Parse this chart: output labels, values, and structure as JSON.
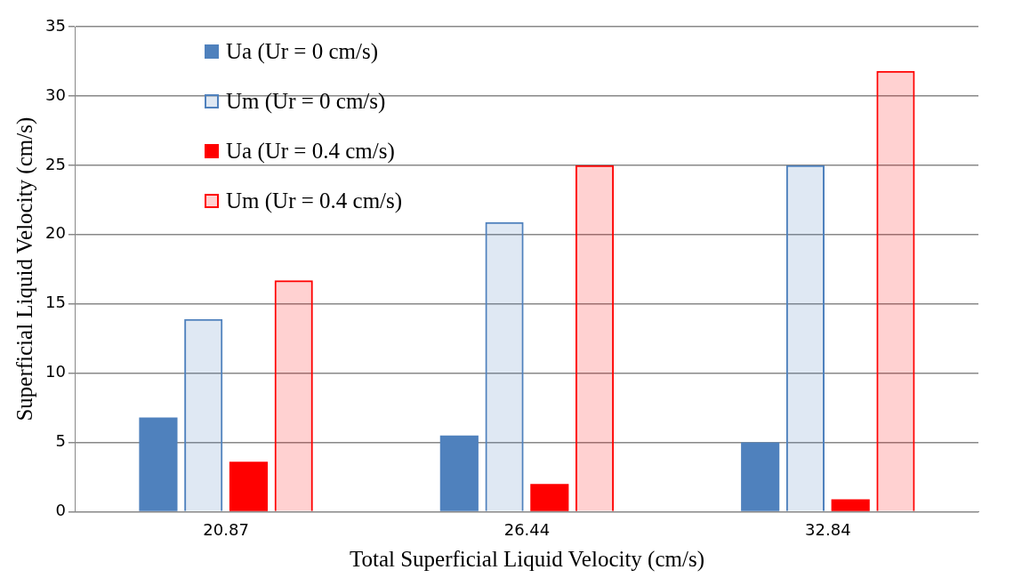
{
  "chart_data": {
    "type": "bar",
    "xlabel": "Total Superficial Liquid Velocity (cm/s)",
    "ylabel": "Superficial Liquid Velocity (cm/s)",
    "categories": [
      "20.87",
      "26.44",
      "32.84"
    ],
    "series": [
      {
        "name": "Ua (Ur = 0 cm/s)",
        "color": "#4f81bd",
        "values": [
          6.8,
          5.5,
          5.0
        ]
      },
      {
        "name": "Um (Ur = 0 cm/s)",
        "color": "#4f81bd",
        "values": [
          13.9,
          20.9,
          25.0
        ]
      },
      {
        "name": "Ua (Ur = 0.4 cm/s)",
        "color": "#ff0000",
        "values": [
          3.6,
          2.0,
          0.9
        ]
      },
      {
        "name": "Um (Ur = 0.4 cm/s)",
        "color": "#ff0000",
        "values": [
          16.7,
          25.0,
          31.8
        ]
      }
    ],
    "ylim": [
      0,
      35
    ],
    "yticks": [
      0,
      5,
      10,
      15,
      20,
      25,
      30,
      35
    ],
    "grid": "y",
    "legend": "top left"
  }
}
